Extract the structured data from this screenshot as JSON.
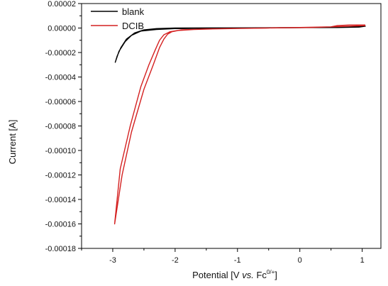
{
  "chart_data": {
    "type": "line",
    "xlabel_parts": {
      "prefix": "Potential [V ",
      "italic": "vs.",
      "middle": " Fc",
      "sup": "0/+",
      "suffix": "]"
    },
    "ylabel": "Current [A]",
    "xlim": [
      -3.5,
      1.3
    ],
    "ylim": [
      -0.00018,
      2e-05
    ],
    "x_ticks": [
      -3,
      -2,
      -1,
      0,
      1
    ],
    "x_tick_labels": [
      "-3",
      "-2",
      "-1",
      "0",
      "1"
    ],
    "y_ticks": [
      2e-05,
      0.0,
      -2e-05,
      -4e-05,
      -6e-05,
      -8e-05,
      -0.0001,
      -0.00012,
      -0.00014,
      -0.00016,
      -0.00018
    ],
    "y_tick_labels": [
      "0.00002",
      "0.00000",
      "-0.00002",
      "-0.00004",
      "-0.00006",
      "-0.00008",
      "-0.00010",
      "-0.00012",
      "-0.00014",
      "-0.00016",
      "-0.00018"
    ],
    "grid": false,
    "legend_position": "top-left",
    "series": [
      {
        "name": "blank",
        "color": "#000000",
        "points": [
          [
            -0.3,
            3e-07
          ],
          [
            -0.8,
            2e-07
          ],
          [
            -1.4,
            1e-07
          ],
          [
            -2.0,
            0.0
          ],
          [
            -2.3,
            -5e-07
          ],
          [
            -2.5,
            -1.5e-06
          ],
          [
            -2.65,
            -4e-06
          ],
          [
            -2.78,
            -9e-06
          ],
          [
            -2.87,
            -1.6e-05
          ],
          [
            -2.93,
            -2.3e-05
          ],
          [
            -2.96,
            -2.8e-05
          ],
          [
            -2.9,
            -1.9e-05
          ],
          [
            -2.8,
            -1.1e-05
          ],
          [
            -2.7,
            -6e-06
          ],
          [
            -2.55,
            -2.5e-06
          ],
          [
            -2.3,
            -1.2e-06
          ],
          [
            -2.0,
            -5e-07
          ],
          [
            -1.5,
            -2e-07
          ],
          [
            -0.8,
            0.0
          ],
          [
            -0.3,
            2e-07
          ],
          [
            0.3,
            4e-07
          ],
          [
            0.6,
            1e-06
          ],
          [
            0.9,
            1.5e-06
          ],
          [
            1.05,
            1.5e-06
          ],
          [
            0.95,
            8e-07
          ],
          [
            0.6,
            4e-07
          ],
          [
            0.0,
            3e-07
          ],
          [
            -0.3,
            3e-07
          ]
        ]
      },
      {
        "name": "DCIB",
        "color": "#d42020",
        "points": [
          [
            1.05,
            2.5e-06
          ],
          [
            0.8,
            2.5e-06
          ],
          [
            0.6,
            2e-06
          ],
          [
            0.5,
            1e-06
          ],
          [
            0.2,
            5e-07
          ],
          [
            -0.5,
            0.0
          ],
          [
            -1.2,
            -5e-07
          ],
          [
            -1.7,
            -1.2e-06
          ],
          [
            -1.95,
            -2e-06
          ],
          [
            -2.05,
            -3e-06
          ],
          [
            -2.12,
            -5e-06
          ],
          [
            -2.18,
            -9e-06
          ],
          [
            -2.25,
            -1.6e-05
          ],
          [
            -2.35,
            -3e-05
          ],
          [
            -2.5,
            -5e-05
          ],
          [
            -2.7,
            -8.5e-05
          ],
          [
            -2.85,
            -0.00012
          ],
          [
            -2.97,
            -0.00016
          ],
          [
            -2.88,
            -0.000115
          ],
          [
            -2.72,
            -8e-05
          ],
          [
            -2.55,
            -4.8e-05
          ],
          [
            -2.42,
            -3e-05
          ],
          [
            -2.32,
            -1.8e-05
          ],
          [
            -2.25,
            -1e-05
          ],
          [
            -2.18,
            -5.5e-06
          ],
          [
            -2.08,
            -3e-06
          ],
          [
            -1.9,
            -1.5e-06
          ],
          [
            -1.5,
            -8e-07
          ],
          [
            -0.8,
            -2e-07
          ],
          [
            0.0,
            5e-07
          ],
          [
            0.5,
            1e-06
          ],
          [
            0.8,
            1.5e-06
          ],
          [
            1.05,
            2e-06
          ]
        ]
      }
    ]
  }
}
